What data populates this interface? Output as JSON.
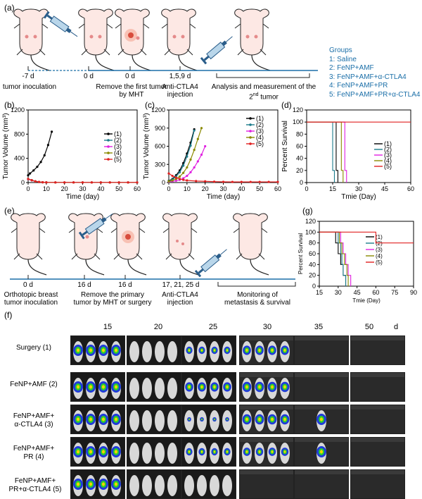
{
  "panel_letters": [
    "(a)",
    "(b)",
    "(c)",
    "(d)",
    "(e)",
    "(f)",
    "(g)"
  ],
  "panel_a": {
    "time_labels": [
      "-7 d",
      "0 d",
      "0 d",
      "1,5,9 d"
    ],
    "step_labels": [
      "tumor inoculation",
      "Remove the first tumor by MHT",
      "Anti-CTLA4 injection",
      "Analysis and measurement of the 2nd tumor"
    ],
    "step_label_parts": {
      "remove_1": "Remove the first tumor",
      "remove_2": "by MHT",
      "anti_1": "Anti-CTLA4",
      "anti_2": "injection",
      "analysis_1": "Analysis and measurement of the",
      "analysis_2a": "2",
      "analysis_2sup": "nd",
      "analysis_2b": " tumor"
    }
  },
  "groups": {
    "title": "Groups",
    "items": [
      "1: Saline",
      "2: FeNP+AMF",
      "3: FeNP+AMF+α-CTLA4",
      "4: FeNP+AMF+PR",
      "5: FeNP+AMF+PR+α-CTLA4"
    ]
  },
  "panel_e": {
    "time_labels": [
      "0 d",
      "16 d",
      "16 d",
      "17, 21, 25 d"
    ],
    "parts": {
      "ortho_1": "Orthotopic breast",
      "ortho_2": "tumor inoculation",
      "remove_1": "Remove the primary",
      "remove_2": "tumor by MHT or surgery",
      "anti_1": "Anti-CTLA4",
      "anti_2": "injection",
      "mon_1": "Monitoring of",
      "mon_2": "metastasis & survival"
    }
  },
  "panel_f": {
    "days": [
      "15",
      "20",
      "25",
      "30",
      "35",
      "50"
    ],
    "unit": "d",
    "rows": [
      {
        "l1": "Surgery (1)",
        "l2": "",
        "l3": ""
      },
      {
        "l1": "FeNP+AMF (2)",
        "l2": "",
        "l3": ""
      },
      {
        "l1": "FeNP+AMF+",
        "l2": "α-CTLA4 (3)",
        "l3": ""
      },
      {
        "l1": "FeNP+AMF+",
        "l2": "PR (4)",
        "l3": ""
      },
      {
        "l1": "FeNP+AMF+",
        "l2": "PR+α-CTLA4 (5)",
        "l3": ""
      }
    ]
  },
  "chart_data": [
    {
      "panel": "(b)",
      "type": "line",
      "xlabel": "Time (day)",
      "ylabel": "Tumor Volume (mm³)",
      "xlim": [
        0,
        60
      ],
      "ylim": [
        0,
        1200
      ],
      "xticks": [
        0,
        10,
        20,
        30,
        40,
        50,
        60
      ],
      "yticks": [
        0,
        400,
        800,
        1200
      ],
      "legend": "right",
      "series": [
        {
          "name": "(1)",
          "color": "#000000",
          "x": [
            0,
            1,
            3,
            5,
            7,
            9,
            11,
            13
          ],
          "y": [
            120,
            150,
            200,
            260,
            340,
            450,
            620,
            840
          ]
        },
        {
          "name": "(2)",
          "color": "#1c7c8c",
          "x": [
            0,
            2,
            4,
            6,
            8,
            10,
            15,
            20,
            25,
            30,
            35,
            40,
            45,
            50,
            55,
            60
          ],
          "y": [
            60,
            40,
            20,
            10,
            5,
            3,
            2,
            2,
            2,
            2,
            2,
            2,
            2,
            2,
            2,
            2
          ]
        },
        {
          "name": "(3)",
          "color": "#e020e0",
          "x": [
            0,
            2,
            4,
            6,
            8,
            10,
            15,
            20,
            25,
            30,
            35,
            40,
            45,
            50,
            55,
            60
          ],
          "y": [
            55,
            35,
            18,
            8,
            4,
            3,
            2,
            2,
            2,
            2,
            2,
            2,
            2,
            2,
            2,
            2
          ]
        },
        {
          "name": "(4)",
          "color": "#8a8a00",
          "x": [
            0,
            2,
            4,
            6,
            8,
            10,
            15,
            20,
            25,
            30,
            35,
            40,
            45,
            50,
            55,
            60
          ],
          "y": [
            58,
            38,
            19,
            9,
            4,
            3,
            2,
            2,
            2,
            2,
            2,
            2,
            2,
            2,
            2,
            2
          ]
        },
        {
          "name": "(5)",
          "color": "#e02020",
          "x": [
            0,
            2,
            4,
            6,
            8,
            10,
            15,
            20,
            25,
            30,
            35,
            40,
            45,
            50,
            55,
            60
          ],
          "y": [
            60,
            40,
            20,
            10,
            5,
            3,
            2,
            2,
            2,
            2,
            2,
            2,
            2,
            2,
            2,
            2
          ]
        }
      ]
    },
    {
      "panel": "(c)",
      "type": "line",
      "xlabel": "Time (day)",
      "ylabel": "Tumor Volume (mm³)",
      "xlim": [
        0,
        60
      ],
      "ylim": [
        0,
        1200
      ],
      "xticks": [
        0,
        10,
        20,
        30,
        40,
        50,
        60
      ],
      "yticks": [
        0,
        300,
        600,
        900,
        1200
      ],
      "legend": "right",
      "series": [
        {
          "name": "(1)",
          "color": "#000000",
          "x": [
            0,
            2,
            4,
            6,
            8,
            10,
            12,
            14
          ],
          "y": [
            30,
            60,
            120,
            200,
            320,
            480,
            660,
            880
          ]
        },
        {
          "name": "(2)",
          "color": "#1c7c8c",
          "x": [
            0,
            2,
            4,
            6,
            8,
            10,
            12,
            14
          ],
          "y": [
            25,
            50,
            100,
            170,
            280,
            430,
            610,
            860
          ]
        },
        {
          "name": "(3)",
          "color": "#e020e0",
          "x": [
            0,
            2,
            4,
            6,
            8,
            10,
            12,
            14,
            16,
            18,
            20
          ],
          "y": [
            15,
            20,
            30,
            45,
            70,
            110,
            170,
            250,
            350,
            460,
            600
          ]
        },
        {
          "name": "(4)",
          "color": "#8a8a00",
          "x": [
            0,
            2,
            4,
            6,
            8,
            10,
            12,
            14,
            16,
            18
          ],
          "y": [
            20,
            35,
            60,
            100,
            160,
            250,
            380,
            540,
            720,
            900
          ]
        },
        {
          "name": "(5)",
          "color": "#e02020",
          "x": [
            0,
            2,
            4,
            6,
            8,
            10,
            15,
            20,
            25,
            30,
            35,
            40,
            45,
            50,
            55,
            60
          ],
          "y": [
            150,
            110,
            80,
            60,
            45,
            35,
            25,
            20,
            15,
            12,
            10,
            10,
            10,
            10,
            10,
            10
          ]
        }
      ]
    },
    {
      "panel": "(d)",
      "type": "line",
      "xlabel": "Tmie (Day)",
      "ylabel": "Percent Survival",
      "xlim": [
        0,
        60
      ],
      "ylim": [
        0,
        120
      ],
      "xticks": [
        0,
        15,
        30,
        45,
        60
      ],
      "yticks": [
        0,
        20,
        40,
        60,
        80,
        100,
        120
      ],
      "legend": "right",
      "series": [
        {
          "name": "(1)",
          "color": "#000000",
          "x": [
            0,
            17,
            17,
            18,
            18
          ],
          "y": [
            100,
            100,
            20,
            20,
            0
          ]
        },
        {
          "name": "(2)",
          "color": "#1c7c8c",
          "x": [
            0,
            15,
            15,
            16,
            16
          ],
          "y": [
            100,
            100,
            20,
            20,
            0
          ]
        },
        {
          "name": "(3)",
          "color": "#e020e0",
          "x": [
            0,
            22,
            22,
            23,
            23
          ],
          "y": [
            100,
            100,
            20,
            20,
            0
          ]
        },
        {
          "name": "(4)",
          "color": "#8a8a00",
          "x": [
            0,
            20,
            20,
            21,
            21
          ],
          "y": [
            100,
            100,
            20,
            20,
            0
          ]
        },
        {
          "name": "(5)",
          "color": "#e02020",
          "x": [
            0,
            60
          ],
          "y": [
            100,
            100
          ]
        }
      ]
    },
    {
      "panel": "(g)",
      "type": "line",
      "xlabel": "Tmie (Day)",
      "ylabel": "Percent Survival",
      "xlim": [
        15,
        90
      ],
      "ylim": [
        0,
        120
      ],
      "xticks": [
        15,
        30,
        45,
        60,
        75,
        90
      ],
      "yticks": [
        0,
        20,
        40,
        60,
        80,
        100,
        120
      ],
      "legend": "right",
      "series": [
        {
          "name": "(1)",
          "color": "#000000",
          "x": [
            15,
            28,
            28,
            30,
            30,
            32,
            32,
            34,
            34,
            36,
            36
          ],
          "y": [
            100,
            100,
            80,
            80,
            60,
            60,
            40,
            40,
            20,
            20,
            0
          ]
        },
        {
          "name": "(2)",
          "color": "#1c7c8c",
          "x": [
            15,
            30,
            30,
            32,
            32,
            33,
            33,
            34,
            34,
            36,
            36
          ],
          "y": [
            100,
            100,
            80,
            80,
            60,
            60,
            40,
            40,
            20,
            20,
            0
          ]
        },
        {
          "name": "(3)",
          "color": "#e020e0",
          "x": [
            15,
            32,
            32,
            34,
            34,
            36,
            36,
            38,
            38,
            40,
            40
          ],
          "y": [
            100,
            100,
            80,
            80,
            60,
            60,
            40,
            40,
            20,
            20,
            0
          ]
        },
        {
          "name": "(4)",
          "color": "#8a8a00",
          "x": [
            15,
            31,
            31,
            33,
            33,
            35,
            35,
            37,
            37,
            38,
            38
          ],
          "y": [
            100,
            100,
            80,
            80,
            60,
            60,
            40,
            40,
            20,
            20,
            0
          ]
        },
        {
          "name": "(5)",
          "color": "#e02020",
          "x": [
            15,
            60,
            60,
            90
          ],
          "y": [
            100,
            100,
            80,
            80
          ]
        }
      ]
    }
  ]
}
